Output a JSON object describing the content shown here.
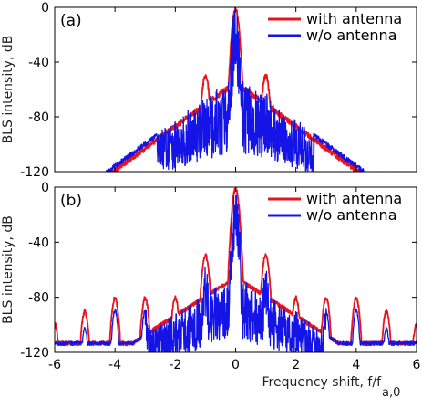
{
  "chart_data": [
    {
      "type": "line",
      "panel_label": "(a)",
      "xlim": [
        -6,
        6
      ],
      "ylim": [
        -120,
        0
      ],
      "yticks": [
        0,
        -40,
        -80,
        -120
      ],
      "ylabel": "BLS intensity, dB",
      "grid": false,
      "legend_position": "top-right",
      "series": [
        {
          "name": "with antenna",
          "color": "#e8141e",
          "x": [
            -2,
            -1,
            0,
            1,
            2
          ],
          "y": [
            -90,
            -48,
            0,
            -48,
            -90
          ]
        },
        {
          "name": "w/o  antenna",
          "color": "#1414e6",
          "x": [
            -5.6,
            -3,
            -2,
            -1,
            0,
            1,
            2,
            3,
            5.6
          ],
          "y": [
            -120,
            -108,
            -95,
            -62,
            0,
            -62,
            -95,
            -108,
            -120
          ]
        }
      ]
    },
    {
      "type": "line",
      "panel_label": "(b)",
      "xlim": [
        -6,
        6
      ],
      "ylim": [
        -120,
        0
      ],
      "xticks": [
        -6,
        -4,
        -2,
        0,
        2,
        4,
        6
      ],
      "yticks": [
        0,
        -40,
        -80,
        -120
      ],
      "xlabel": "Frequency shift, f/f",
      "xlabel_subscript": "a,0",
      "ylabel": "BLS intensity, dB",
      "grid": false,
      "legend_position": "top-right",
      "series": [
        {
          "name": "with antenna",
          "color": "#e8141e",
          "x": [
            -6,
            -5,
            -4,
            -3,
            -2,
            -1,
            0,
            1,
            2,
            3,
            4,
            5,
            6
          ],
          "y": [
            -98,
            -89,
            -79,
            -79,
            -79,
            -48,
            0,
            -48,
            -79,
            -79,
            -79,
            -89,
            -98
          ]
        },
        {
          "name": "w/o  antenna",
          "color": "#1414e6",
          "x": [
            -6,
            -5,
            -4,
            -3,
            -2,
            -1,
            0,
            1,
            2,
            3,
            4,
            5,
            6
          ],
          "y": [
            -112,
            -101,
            -88,
            -88,
            -88,
            -58,
            0,
            -58,
            -88,
            -88,
            -88,
            -101,
            -112
          ]
        }
      ]
    }
  ]
}
